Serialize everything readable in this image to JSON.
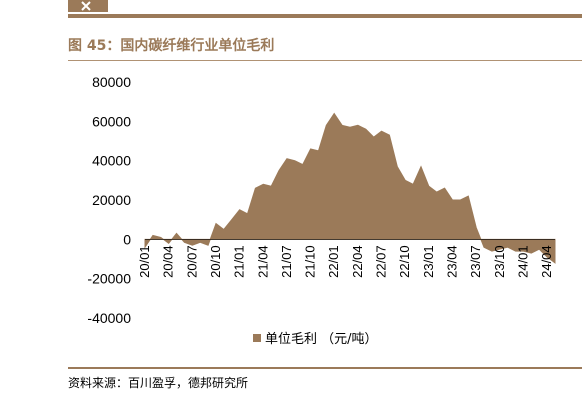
{
  "page": {
    "figure_title": "图 45：国内碳纤维行业单位毛利",
    "source": "资料来源：百川盈孚，德邦研究所"
  },
  "colors": {
    "accent": "#9b7a59",
    "series": "#9b7a59"
  },
  "chart_data": {
    "type": "area",
    "title": "",
    "xlabel": "",
    "ylabel": "",
    "ylim": [
      -40000,
      80000
    ],
    "yticks": [
      80000,
      60000,
      40000,
      20000,
      0,
      -20000,
      -40000
    ],
    "xticks": [
      "20/01",
      "20/04",
      "20/07",
      "20/10",
      "21/01",
      "21/04",
      "21/07",
      "21/10",
      "22/01",
      "22/04",
      "22/07",
      "22/10",
      "23/01",
      "23/04",
      "23/07",
      "23/10",
      "24/01",
      "24/04"
    ],
    "grid": false,
    "legend_position": "bottom",
    "series": [
      {
        "name": "单位毛利 （元/吨）",
        "x": [
          "20/01",
          "20/02",
          "20/03",
          "20/04",
          "20/05",
          "20/06",
          "20/07",
          "20/08",
          "20/09",
          "20/10",
          "20/11",
          "20/12",
          "21/01",
          "21/02",
          "21/03",
          "21/04",
          "21/05",
          "21/06",
          "21/07",
          "21/08",
          "21/09",
          "21/10",
          "21/11",
          "21/12",
          "22/01",
          "22/02",
          "22/03",
          "22/04",
          "22/05",
          "22/06",
          "22/07",
          "22/08",
          "22/09",
          "22/10",
          "22/11",
          "22/12",
          "23/01",
          "23/02",
          "23/03",
          "23/04",
          "23/05",
          "23/06",
          "23/07",
          "23/08",
          "23/09",
          "23/10",
          "23/11",
          "23/12",
          "24/01",
          "24/02",
          "24/03",
          "24/04",
          "24/05"
        ],
        "values": [
          -4000,
          2000,
          1000,
          -2000,
          3000,
          -1500,
          -3000,
          -1500,
          -3000,
          8000,
          5000,
          10000,
          15000,
          13000,
          26000,
          28000,
          27000,
          35000,
          41000,
          40000,
          38000,
          46000,
          45000,
          58000,
          64000,
          58000,
          57000,
          58000,
          56000,
          52000,
          55000,
          53000,
          37000,
          30000,
          28000,
          37000,
          27000,
          24000,
          26000,
          20000,
          20000,
          22000,
          6000,
          -4000,
          -6000,
          -5000,
          -4000,
          -6000,
          -6000,
          -7000,
          -5000,
          -9000,
          -12000
        ]
      }
    ]
  }
}
